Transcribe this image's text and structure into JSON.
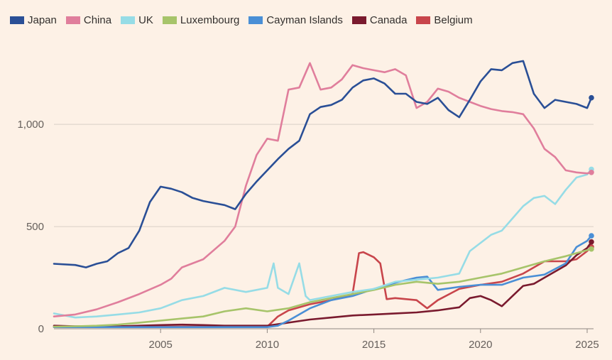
{
  "chart_data": {
    "type": "line",
    "title": "",
    "xlabel": "",
    "ylabel": "",
    "xlim": [
      2000.0,
      2025.3
    ],
    "ylim": [
      0,
      1400
    ],
    "x_ticks": [
      {
        "value": 2005,
        "label": "2005"
      },
      {
        "value": 2010,
        "label": "2010"
      },
      {
        "value": 2015,
        "label": "2015"
      },
      {
        "value": 2020,
        "label": "2020"
      },
      {
        "value": 2025,
        "label": "2025"
      }
    ],
    "y_ticks": [
      {
        "value": 0,
        "label": "0"
      },
      {
        "value": 500,
        "label": "500"
      },
      {
        "value": 1000,
        "label": "1,000"
      }
    ],
    "legend_position": "top-left",
    "series": [
      {
        "name": "Japan",
        "color": "#2a4f96",
        "points": [
          [
            2000,
            318
          ],
          [
            2001,
            312
          ],
          [
            2001.5,
            300
          ],
          [
            2002,
            318
          ],
          [
            2002.5,
            330
          ],
          [
            2003,
            370
          ],
          [
            2003.5,
            395
          ],
          [
            2004,
            480
          ],
          [
            2004.5,
            620
          ],
          [
            2005,
            695
          ],
          [
            2005.5,
            685
          ],
          [
            2006,
            668
          ],
          [
            2006.5,
            640
          ],
          [
            2007,
            625
          ],
          [
            2007.5,
            615
          ],
          [
            2008,
            605
          ],
          [
            2008.5,
            585
          ],
          [
            2009,
            660
          ],
          [
            2009.5,
            720
          ],
          [
            2010,
            775
          ],
          [
            2010.5,
            830
          ],
          [
            2011,
            880
          ],
          [
            2011.5,
            920
          ],
          [
            2012,
            1050
          ],
          [
            2012.5,
            1085
          ],
          [
            2013,
            1095
          ],
          [
            2013.5,
            1120
          ],
          [
            2014,
            1180
          ],
          [
            2014.5,
            1215
          ],
          [
            2015,
            1225
          ],
          [
            2015.5,
            1200
          ],
          [
            2016,
            1150
          ],
          [
            2016.5,
            1150
          ],
          [
            2017,
            1110
          ],
          [
            2017.5,
            1100
          ],
          [
            2018,
            1130
          ],
          [
            2018.5,
            1070
          ],
          [
            2019,
            1035
          ],
          [
            2019.5,
            1120
          ],
          [
            2020,
            1210
          ],
          [
            2020.5,
            1270
          ],
          [
            2021,
            1265
          ],
          [
            2021.5,
            1300
          ],
          [
            2022,
            1310
          ],
          [
            2022.5,
            1150
          ],
          [
            2023,
            1080
          ],
          [
            2023.5,
            1120
          ],
          [
            2024,
            1110
          ],
          [
            2024.5,
            1100
          ],
          [
            2025,
            1080
          ],
          [
            2025.2,
            1130
          ]
        ]
      },
      {
        "name": "China",
        "color": "#e07e9c",
        "points": [
          [
            2000,
            60
          ],
          [
            2001,
            70
          ],
          [
            2002,
            95
          ],
          [
            2003,
            130
          ],
          [
            2004,
            170
          ],
          [
            2005,
            215
          ],
          [
            2005.5,
            245
          ],
          [
            2006,
            300
          ],
          [
            2007,
            340
          ],
          [
            2008,
            430
          ],
          [
            2008.5,
            500
          ],
          [
            2009,
            700
          ],
          [
            2009.5,
            850
          ],
          [
            2010,
            930
          ],
          [
            2010.5,
            920
          ],
          [
            2011,
            1170
          ],
          [
            2011.5,
            1180
          ],
          [
            2012,
            1300
          ],
          [
            2012.5,
            1170
          ],
          [
            2013,
            1180
          ],
          [
            2013.5,
            1220
          ],
          [
            2014,
            1290
          ],
          [
            2014.5,
            1275
          ],
          [
            2015,
            1265
          ],
          [
            2015.5,
            1255
          ],
          [
            2016,
            1270
          ],
          [
            2016.5,
            1240
          ],
          [
            2017,
            1080
          ],
          [
            2017.5,
            1110
          ],
          [
            2018,
            1175
          ],
          [
            2018.5,
            1160
          ],
          [
            2019,
            1130
          ],
          [
            2019.5,
            1110
          ],
          [
            2020,
            1090
          ],
          [
            2020.5,
            1075
          ],
          [
            2021,
            1065
          ],
          [
            2021.5,
            1060
          ],
          [
            2022,
            1050
          ],
          [
            2022.5,
            980
          ],
          [
            2023,
            880
          ],
          [
            2023.5,
            840
          ],
          [
            2024,
            775
          ],
          [
            2024.5,
            765
          ],
          [
            2025,
            760
          ],
          [
            2025.2,
            765
          ]
        ]
      },
      {
        "name": "UK",
        "color": "#96dce6",
        "points": [
          [
            2000,
            75
          ],
          [
            2001,
            55
          ],
          [
            2002,
            60
          ],
          [
            2003,
            70
          ],
          [
            2004,
            80
          ],
          [
            2005,
            100
          ],
          [
            2005.5,
            120
          ],
          [
            2006,
            140
          ],
          [
            2007,
            160
          ],
          [
            2008,
            200
          ],
          [
            2009,
            180
          ],
          [
            2010,
            200
          ],
          [
            2010.3,
            320
          ],
          [
            2010.5,
            200
          ],
          [
            2011,
            170
          ],
          [
            2011.5,
            320
          ],
          [
            2011.8,
            160
          ],
          [
            2012,
            140
          ],
          [
            2013,
            160
          ],
          [
            2014,
            180
          ],
          [
            2015,
            195
          ],
          [
            2016,
            230
          ],
          [
            2017,
            240
          ],
          [
            2018,
            250
          ],
          [
            2019,
            270
          ],
          [
            2019.5,
            380
          ],
          [
            2020,
            420
          ],
          [
            2020.5,
            460
          ],
          [
            2021,
            480
          ],
          [
            2021.5,
            540
          ],
          [
            2022,
            600
          ],
          [
            2022.5,
            640
          ],
          [
            2023,
            650
          ],
          [
            2023.5,
            610
          ],
          [
            2024,
            680
          ],
          [
            2024.5,
            740
          ],
          [
            2025,
            755
          ],
          [
            2025.2,
            780
          ]
        ]
      },
      {
        "name": "Luxembourg",
        "color": "#a7c46a",
        "points": [
          [
            2000,
            10
          ],
          [
            2001,
            12
          ],
          [
            2002,
            15
          ],
          [
            2003,
            20
          ],
          [
            2004,
            30
          ],
          [
            2005,
            40
          ],
          [
            2006,
            50
          ],
          [
            2007,
            60
          ],
          [
            2008,
            85
          ],
          [
            2009,
            100
          ],
          [
            2010,
            85
          ],
          [
            2011,
            100
          ],
          [
            2012,
            130
          ],
          [
            2013,
            150
          ],
          [
            2014,
            170
          ],
          [
            2015,
            190
          ],
          [
            2016,
            215
          ],
          [
            2017,
            230
          ],
          [
            2018,
            220
          ],
          [
            2019,
            230
          ],
          [
            2020,
            250
          ],
          [
            2021,
            270
          ],
          [
            2022,
            300
          ],
          [
            2023,
            330
          ],
          [
            2024,
            355
          ],
          [
            2025,
            385
          ],
          [
            2025.2,
            390
          ]
        ]
      },
      {
        "name": "Cayman Islands",
        "color": "#4a8fd6",
        "points": [
          [
            2000,
            8
          ],
          [
            2002,
            8
          ],
          [
            2004,
            8
          ],
          [
            2006,
            8
          ],
          [
            2008,
            8
          ],
          [
            2010,
            8
          ],
          [
            2010.5,
            15
          ],
          [
            2011,
            40
          ],
          [
            2012,
            100
          ],
          [
            2013,
            140
          ],
          [
            2014,
            160
          ],
          [
            2015,
            195
          ],
          [
            2016,
            225
          ],
          [
            2017,
            250
          ],
          [
            2017.5,
            255
          ],
          [
            2018,
            190
          ],
          [
            2019,
            205
          ],
          [
            2020,
            215
          ],
          [
            2021,
            215
          ],
          [
            2022,
            250
          ],
          [
            2023,
            265
          ],
          [
            2024,
            320
          ],
          [
            2024.5,
            400
          ],
          [
            2025,
            430
          ],
          [
            2025.2,
            455
          ]
        ]
      },
      {
        "name": "Canada",
        "color": "#7a1a2e",
        "points": [
          [
            2000,
            15
          ],
          [
            2001,
            12
          ],
          [
            2002,
            12
          ],
          [
            2003,
            12
          ],
          [
            2004,
            15
          ],
          [
            2005,
            18
          ],
          [
            2006,
            20
          ],
          [
            2007,
            18
          ],
          [
            2008,
            15
          ],
          [
            2009,
            15
          ],
          [
            2010,
            15
          ],
          [
            2011,
            30
          ],
          [
            2012,
            45
          ],
          [
            2013,
            55
          ],
          [
            2014,
            65
          ],
          [
            2015,
            70
          ],
          [
            2016,
            75
          ],
          [
            2017,
            80
          ],
          [
            2018,
            90
          ],
          [
            2019,
            105
          ],
          [
            2019.5,
            150
          ],
          [
            2020,
            160
          ],
          [
            2020.5,
            140
          ],
          [
            2021,
            110
          ],
          [
            2021.5,
            160
          ],
          [
            2022,
            210
          ],
          [
            2022.5,
            220
          ],
          [
            2023,
            250
          ],
          [
            2024,
            310
          ],
          [
            2024.5,
            360
          ],
          [
            2025,
            395
          ],
          [
            2025.2,
            425
          ]
        ]
      },
      {
        "name": "Belgium",
        "color": "#c8454b",
        "points": [
          [
            2000,
            10
          ],
          [
            2002,
            10
          ],
          [
            2004,
            10
          ],
          [
            2006,
            10
          ],
          [
            2008,
            10
          ],
          [
            2009,
            10
          ],
          [
            2010,
            10
          ],
          [
            2010.5,
            60
          ],
          [
            2011,
            90
          ],
          [
            2012,
            120
          ],
          [
            2013,
            140
          ],
          [
            2014,
            170
          ],
          [
            2014.3,
            370
          ],
          [
            2014.5,
            375
          ],
          [
            2015,
            350
          ],
          [
            2015.3,
            320
          ],
          [
            2015.6,
            145
          ],
          [
            2016,
            150
          ],
          [
            2017,
            140
          ],
          [
            2017.5,
            100
          ],
          [
            2018,
            140
          ],
          [
            2019,
            195
          ],
          [
            2020,
            215
          ],
          [
            2021,
            230
          ],
          [
            2022,
            270
          ],
          [
            2023,
            330
          ],
          [
            2024,
            330
          ],
          [
            2024.5,
            340
          ],
          [
            2025,
            380
          ],
          [
            2025.2,
            400
          ]
        ]
      }
    ]
  }
}
